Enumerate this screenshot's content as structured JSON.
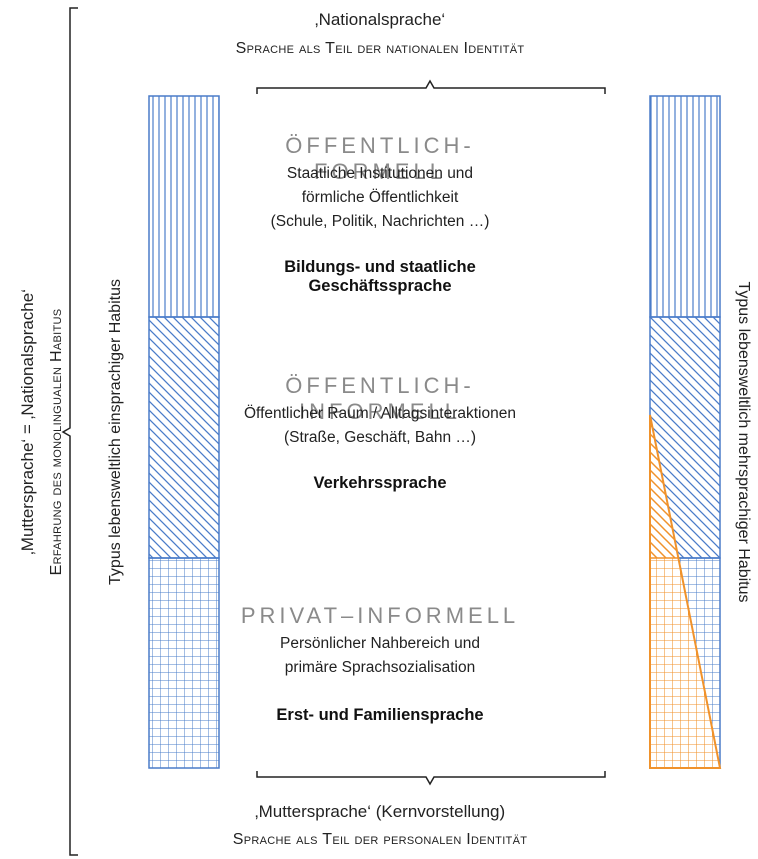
{
  "top": {
    "title": "‚Nationalsprache‘",
    "subtitle": "Sprache als Teil der nationalen Identität"
  },
  "bottom": {
    "title": "‚Muttersprache‘ (Kernvorstellung)",
    "subtitle": "Sprache als Teil der personalen Identität"
  },
  "sections": [
    {
      "heading": "ÖFFENTLICH-FORMELL",
      "lines": [
        "Staatliche Institutionen und",
        "förmliche Öffentlichkeit",
        "(Schule, Politik, Nachrichten …)"
      ],
      "language": "Bildungs- und staatliche Geschäftssprache"
    },
    {
      "heading": "ÖFFENTLICH-INFORMELL",
      "lines": [
        "Öffentlicher Raum / Alltagsinteraktionen",
        "(Straße, Geschäft, Bahn …)"
      ],
      "language": "Verkehrssprache"
    },
    {
      "heading": "PRIVAT–INFORMELL",
      "lines": [
        "Persönlicher Nahbereich und",
        "primäre Sprachsozialisation"
      ],
      "language": "Erst- und Familiensprache"
    }
  ],
  "side_labels": {
    "left_bar": "Typus lebensweltlich einsprachiger Habitus",
    "right_bar": "Typus lebensweltlich mehrsprachiger Habitus",
    "outer_line1": "‚Muttersprache‘ = ‚Nationalsprache‘",
    "outer_line2": "Erfahrung des monolingualen Habitus"
  },
  "colors": {
    "blue": "#4a7cc9",
    "orange": "#f0922b",
    "heading_gray": "#8a8a8a",
    "bracket": "#222222"
  }
}
